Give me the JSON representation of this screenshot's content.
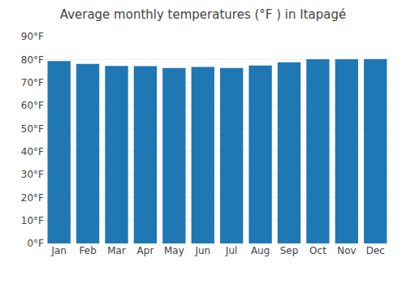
{
  "chart_data": {
    "type": "bar",
    "title": "Average monthly temperatures (°F ) in Itapagé",
    "categories": [
      "Jan",
      "Feb",
      "Mar",
      "Apr",
      "May",
      "Jun",
      "Jul",
      "Aug",
      "Sep",
      "Oct",
      "Nov",
      "Dec"
    ],
    "values": [
      79.3,
      78.1,
      77.2,
      77.1,
      76.3,
      76.8,
      76.3,
      77.4,
      78.8,
      80.1,
      80.1,
      80.2
    ],
    "ylim": [
      0,
      90
    ],
    "yticks": [
      {
        "value": 0,
        "label": "0°F"
      },
      {
        "value": 10,
        "label": "10°F"
      },
      {
        "value": 20,
        "label": "20°F"
      },
      {
        "value": 30,
        "label": "30°F"
      },
      {
        "value": 40,
        "label": "40°F"
      },
      {
        "value": 50,
        "label": "50°F"
      },
      {
        "value": 60,
        "label": "60°F"
      },
      {
        "value": 70,
        "label": "70°F"
      },
      {
        "value": 80,
        "label": "80°F"
      },
      {
        "value": 90,
        "label": "90°F"
      }
    ],
    "grid": true
  }
}
